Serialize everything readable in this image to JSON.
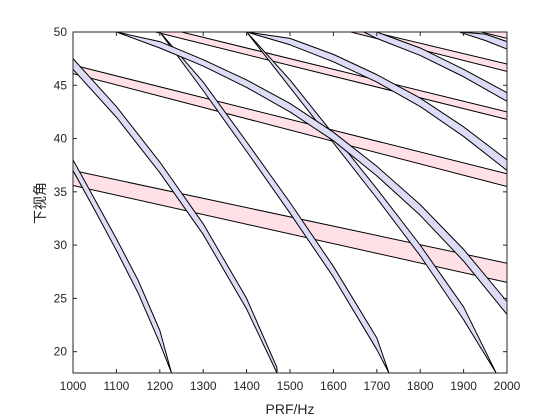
{
  "chart_data": {
    "type": "area",
    "xlabel": "PRF/Hz",
    "ylabel": "下视角",
    "xlim": [
      1000,
      2000
    ],
    "ylim": [
      18,
      50
    ],
    "xticks": [
      "1000",
      "1100",
      "1200",
      "1300",
      "1400",
      "1500",
      "1600",
      "1700",
      "1800",
      "1900",
      "2000"
    ],
    "yticks": [
      "20",
      "25",
      "30",
      "35",
      "40",
      "45",
      "50"
    ],
    "grid": false,
    "legend": "none",
    "colors": {
      "pink_fill": "#ffe0e6",
      "blue_fill": "#dcdcf6",
      "band_edge": "#000000",
      "axis": "#262626"
    },
    "series": [
      {
        "color": "pink",
        "x": [
          1000,
          2000
        ],
        "lower": [
          35.6,
          26.5
        ],
        "upper": [
          37.0,
          28.3
        ]
      },
      {
        "color": "pink",
        "x": [
          1000,
          2000
        ],
        "lower": [
          46.1,
          35.5
        ],
        "upper": [
          46.9,
          36.7
        ]
      },
      {
        "color": "pink",
        "x": [
          1190,
          2000
        ],
        "lower": [
          50.0,
          41.8
        ],
        "upper": [
          50.6,
          42.5
        ]
      },
      {
        "color": "pink",
        "x": [
          1640,
          2000
        ],
        "lower": [
          50.0,
          46.3
        ],
        "upper": [
          50.5,
          47.0
        ]
      },
      {
        "color": "pink",
        "x": [
          1940,
          2000
        ],
        "lower": [
          50.0,
          49.4
        ],
        "upper": [
          50.5,
          50.0
        ]
      },
      {
        "color": "blue",
        "x": [
          1000,
          1050,
          1100,
          1150,
          1200,
          1227
        ],
        "lower": [
          37.0,
          33.3,
          29.5,
          25.5,
          20.8,
          18.0
        ],
        "upper": [
          38.0,
          34.3,
          30.6,
          26.7,
          22.0,
          18.0
        ]
      },
      {
        "color": "blue",
        "x": [
          1000,
          1100,
          1200,
          1300,
          1400,
          1470
        ],
        "lower": [
          46.5,
          42.0,
          36.8,
          31.0,
          24.0,
          18.0
        ],
        "upper": [
          47.5,
          43.0,
          37.8,
          32.0,
          25.0,
          18.5
        ]
      },
      {
        "color": "blue",
        "x": [
          1200,
          1300,
          1400,
          1500,
          1600,
          1700,
          1728
        ],
        "lower": [
          50.0,
          44.5,
          38.8,
          33.0,
          27.0,
          20.2,
          18.0
        ],
        "upper": [
          50.0,
          45.3,
          39.7,
          34.0,
          28.0,
          21.3,
          18.0
        ]
      },
      {
        "color": "blue",
        "x": [
          1400,
          1500,
          1600,
          1700,
          1800,
          1900,
          1975
        ],
        "lower": [
          50.0,
          44.8,
          39.6,
          34.4,
          29.0,
          23.0,
          18.0
        ],
        "upper": [
          50.0,
          45.5,
          40.4,
          35.3,
          30.0,
          24.2,
          18.0
        ]
      },
      {
        "color": "blue",
        "x": [
          1100,
          1200,
          1300,
          1400,
          1500,
          1600,
          1700,
          1800,
          1900,
          2000
        ],
        "lower": [
          50.0,
          48.5,
          46.8,
          44.8,
          42.5,
          39.8,
          36.5,
          32.8,
          28.5,
          23.5
        ],
        "upper": [
          50.0,
          49.1,
          47.4,
          45.5,
          43.3,
          40.6,
          37.4,
          33.8,
          29.6,
          24.7
        ]
      },
      {
        "color": "blue",
        "x": [
          1400,
          1500,
          1600,
          1700,
          1800,
          1900,
          2000
        ],
        "lower": [
          50.0,
          48.8,
          47.2,
          45.3,
          43.0,
          40.2,
          37.0
        ],
        "upper": [
          50.0,
          49.4,
          47.9,
          46.0,
          43.8,
          41.1,
          38.0
        ]
      },
      {
        "color": "blue",
        "x": [
          1670,
          1700,
          1800,
          1900,
          2000
        ],
        "lower": [
          50.0,
          49.4,
          47.8,
          45.8,
          43.5
        ],
        "upper": [
          50.0,
          50.0,
          48.5,
          46.5,
          44.3
        ]
      },
      {
        "color": "blue",
        "x": [
          1890,
          1950,
          2000
        ],
        "lower": [
          50.0,
          49.2,
          48.4
        ],
        "upper": [
          50.0,
          49.8,
          49.1
        ]
      }
    ]
  }
}
